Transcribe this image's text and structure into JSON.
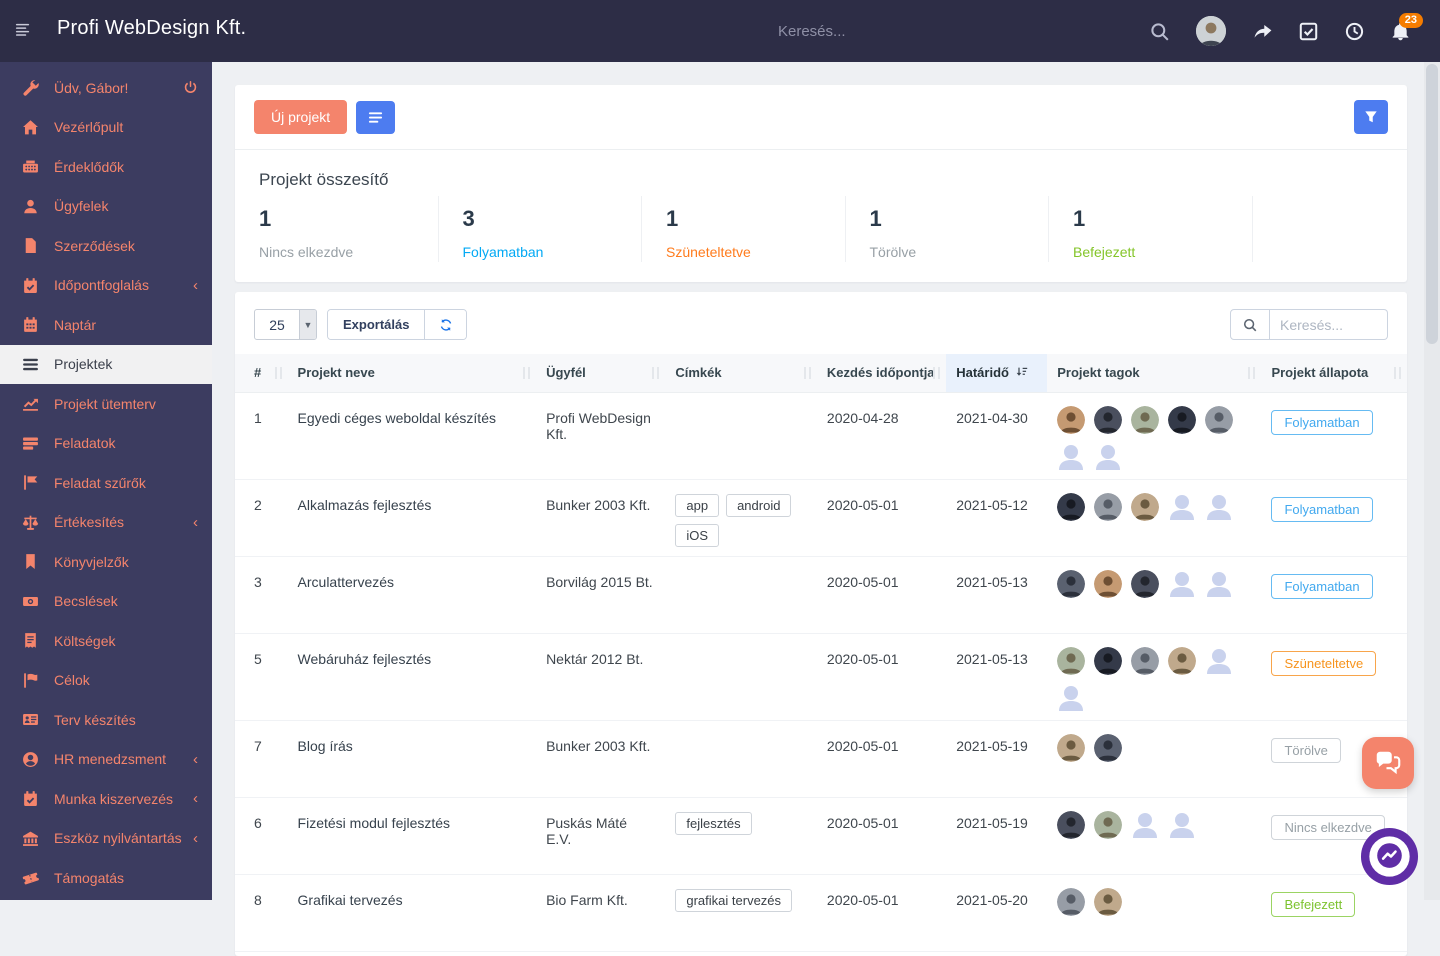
{
  "topbar": {
    "title": "Profi WebDesign Kft.",
    "search_placeholder": "Keresés...",
    "notification_count": "23",
    "icons": [
      "menu-icon",
      "search-icon",
      "user-avatar",
      "share-icon",
      "tasks-icon",
      "clock-icon",
      "bell-icon"
    ]
  },
  "sidebar": {
    "items": [
      {
        "label": "Üdv, Gábor!",
        "icon": "wrench",
        "power": true
      },
      {
        "label": "Vezérlőpult",
        "icon": "home"
      },
      {
        "label": "Érdeklődők",
        "icon": "phone"
      },
      {
        "label": "Ügyfelek",
        "icon": "user"
      },
      {
        "label": "Szerződések",
        "icon": "file"
      },
      {
        "label": "Időpontfoglalás",
        "icon": "calcheck",
        "chevron": true
      },
      {
        "label": "Naptár",
        "icon": "calendar"
      },
      {
        "label": "Projektek",
        "icon": "menu3",
        "active": true
      },
      {
        "label": "Projekt ütemterv",
        "icon": "chart"
      },
      {
        "label": "Feladatok",
        "icon": "list"
      },
      {
        "label": "Feladat szűrők",
        "icon": "flag"
      },
      {
        "label": "Értékesítés",
        "icon": "scales",
        "chevron": true
      },
      {
        "label": "Könyvjelzők",
        "icon": "bookmark"
      },
      {
        "label": "Becslések",
        "icon": "money"
      },
      {
        "label": "Költségek",
        "icon": "invoice"
      },
      {
        "label": "Célok",
        "icon": "flago"
      },
      {
        "label": "Terv készítés",
        "icon": "idcard"
      },
      {
        "label": "HR menedzsment",
        "icon": "usercircle",
        "chevron": true
      },
      {
        "label": "Munka kiszervezés",
        "icon": "calcheck",
        "chevron": true
      },
      {
        "label": "Eszköz nyilvántartás",
        "icon": "bank",
        "chevron": true
      },
      {
        "label": "Támogatás",
        "icon": "ticket"
      }
    ]
  },
  "toolbar": {
    "new_project_label": "Új projekt"
  },
  "summary": {
    "title": "Projekt összesítő",
    "stats": [
      {
        "value": "1",
        "label": "Nincs elkezdve",
        "color": "#98a0a6"
      },
      {
        "value": "3",
        "label": "Folyamatban",
        "color": "#03a9f4"
      },
      {
        "value": "1",
        "label": "Szüneteltetve",
        "color": "#ff7b1c"
      },
      {
        "value": "1",
        "label": "Törölve",
        "color": "#98a0a6"
      },
      {
        "value": "1",
        "label": "Befejezett",
        "color": "#84c529"
      }
    ]
  },
  "table": {
    "page_size": "25",
    "export_label": "Exportálás",
    "search_placeholder": "Keresés...",
    "columns": [
      {
        "label": "#"
      },
      {
        "label": "Projekt neve"
      },
      {
        "label": "Ügyfél"
      },
      {
        "label": "Címkék"
      },
      {
        "label": "Kezdés időpontja"
      },
      {
        "label": "Határidő",
        "sorted": true
      },
      {
        "label": "Projekt tagok"
      },
      {
        "label": "Projekt állapota"
      }
    ],
    "rows": [
      {
        "num": "1",
        "name": "Egyedi céges weboldal készítés",
        "client": "Profi WebDesign Kft.",
        "tags": [],
        "start": "2020-04-28",
        "deadline": "2021-04-30",
        "members_photos": 5,
        "members_placeholders": 2,
        "status": "Folyamatban",
        "status_color": "blue"
      },
      {
        "num": "2",
        "name": "Alkalmazás fejlesztés",
        "client": "Bunker 2003 Kft.",
        "tags": [
          "app",
          "android",
          "iOS"
        ],
        "start": "2020-05-01",
        "deadline": "2021-05-12",
        "members_photos": 3,
        "members_placeholders": 2,
        "status": "Folyamatban",
        "status_color": "blue"
      },
      {
        "num": "3",
        "name": "Arculattervezés",
        "client": "Borvilág 2015 Bt.",
        "tags": [],
        "start": "2020-05-01",
        "deadline": "2021-05-13",
        "members_photos": 3,
        "members_placeholders": 2,
        "status": "Folyamatban",
        "status_color": "blue"
      },
      {
        "num": "5",
        "name": "Webáruház fejlesztés",
        "client": "Nektár 2012 Bt.",
        "tags": [],
        "start": "2020-05-01",
        "deadline": "2021-05-13",
        "members_photos": 4,
        "members_placeholders": 2,
        "status": "Szüneteltetve",
        "status_color": "orange"
      },
      {
        "num": "7",
        "name": "Blog írás",
        "client": "Bunker 2003 Kft.",
        "tags": [],
        "start": "2020-05-01",
        "deadline": "2021-05-19",
        "members_photos": 2,
        "members_placeholders": 0,
        "status": "Törölve",
        "status_color": "gray"
      },
      {
        "num": "6",
        "name": "Fizetési modul fejlesztés",
        "client": "Puskás Máté E.V.",
        "tags": [
          "fejlesztés"
        ],
        "start": "2020-05-01",
        "deadline": "2021-05-19",
        "members_photos": 2,
        "members_placeholders": 2,
        "status": "Nincs elkezdve",
        "status_color": "gray"
      },
      {
        "num": "8",
        "name": "Grafikai tervezés",
        "client": "Bio Farm Kft.",
        "tags": [
          "grafikai tervezés"
        ],
        "start": "2020-05-01",
        "deadline": "2021-05-20",
        "members_photos": 2,
        "members_placeholders": 0,
        "status": "Befejezett",
        "status_color": "green"
      }
    ]
  },
  "colors": {
    "accent": "#f4846c",
    "primary_blue": "#4d7cf0",
    "topbar_bg": "#2d2d46",
    "sidebar_bg": "#3c3c60",
    "badge_orange": "#f57c00",
    "messenger_purple": "#5f2da6"
  },
  "avatars": {
    "palette": [
      {
        "bg": "#c59a72",
        "fg": "#6e4f33"
      },
      {
        "bg": "#4a4f5e",
        "fg": "#23262e"
      },
      {
        "bg": "#a9b49e",
        "fg": "#6f6a52"
      },
      {
        "bg": "#343a49",
        "fg": "#171a22"
      },
      {
        "bg": "#979da6",
        "fg": "#565c66"
      },
      {
        "bg": "#c0a98c",
        "fg": "#6b5b41"
      },
      {
        "bg": "#5a6170",
        "fg": "#2b303b"
      }
    ],
    "placeholder_color": "#c9d2ed"
  }
}
